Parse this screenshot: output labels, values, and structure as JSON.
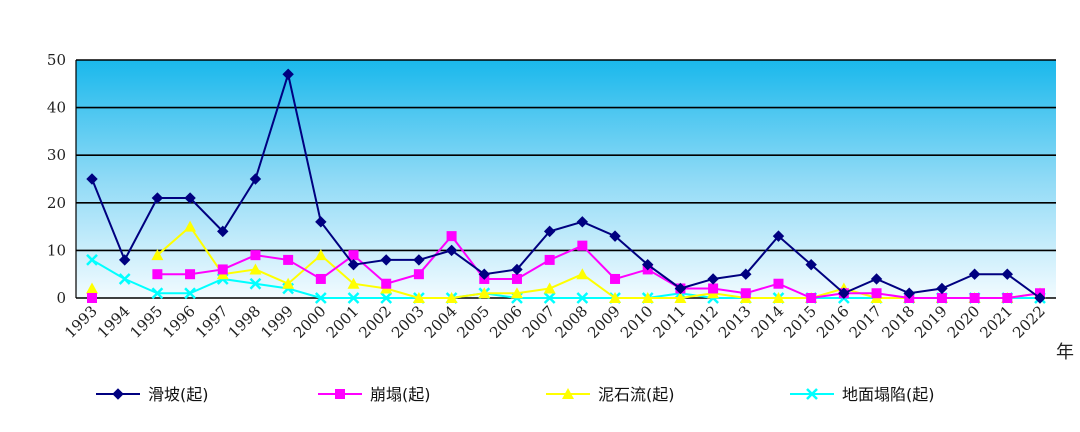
{
  "chart_data": {
    "type": "line",
    "x": [
      "1993",
      "1994",
      "1995",
      "1996",
      "1997",
      "1998",
      "1999",
      "2000",
      "2001",
      "2002",
      "2003",
      "2004",
      "2005",
      "2006",
      "2007",
      "2008",
      "2009",
      "2010",
      "2011",
      "2012",
      "2013",
      "2014",
      "2015",
      "2016",
      "2017",
      "2018",
      "2019",
      "2020",
      "2021",
      "2022"
    ],
    "xlabel": "年",
    "ylabel": "",
    "ylim": [
      0,
      50
    ],
    "yticks": [
      0,
      10,
      20,
      30,
      40,
      50
    ],
    "grid": true,
    "legend_position": "bottom",
    "series": [
      {
        "name": "滑坡(起)",
        "color": "#000080",
        "marker": "diamond",
        "values": [
          25,
          8,
          21,
          21,
          14,
          25,
          47,
          16,
          7,
          8,
          8,
          10,
          5,
          6,
          14,
          16,
          13,
          7,
          2,
          4,
          5,
          13,
          7,
          1,
          4,
          1,
          2,
          5,
          5,
          0
        ]
      },
      {
        "name": "崩塌(起)",
        "color": "#ff00ff",
        "marker": "square",
        "values": [
          0,
          null,
          5,
          5,
          6,
          9,
          8,
          4,
          9,
          3,
          5,
          13,
          4,
          4,
          8,
          11,
          4,
          6,
          2,
          2,
          1,
          3,
          0,
          1,
          1,
          0,
          0,
          0,
          0,
          1
        ]
      },
      {
        "name": "泥石流(起)",
        "color": "#ffff00",
        "marker": "triangle",
        "values": [
          2,
          null,
          9,
          15,
          5,
          6,
          3,
          9,
          3,
          2,
          0,
          0,
          1,
          1,
          2,
          5,
          0,
          0,
          0,
          1,
          0,
          0,
          0,
          2,
          0,
          0,
          0,
          0,
          0,
          1
        ]
      },
      {
        "name": "地面塌陷(起)",
        "color": "#00ffff",
        "marker": "cross",
        "values": [
          8,
          4,
          1,
          1,
          4,
          3,
          2,
          0,
          0,
          0,
          0,
          0,
          1,
          0,
          0,
          0,
          0,
          0,
          1,
          0,
          0,
          0,
          0,
          0,
          0,
          0,
          0,
          0,
          0,
          0
        ]
      }
    ]
  }
}
